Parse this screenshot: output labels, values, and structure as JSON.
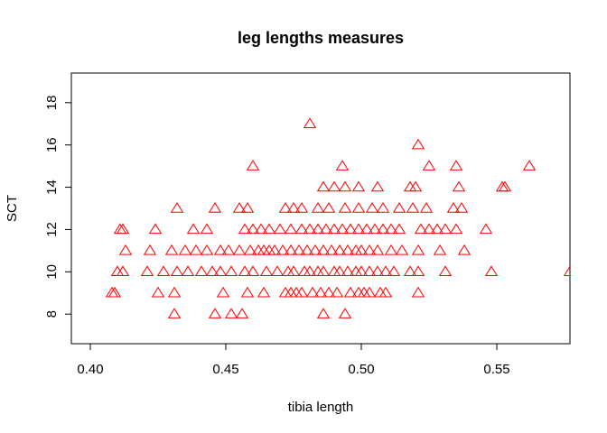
{
  "chart_data": {
    "type": "scatter",
    "title": "leg lengths measures",
    "xlabel": "tibia length",
    "ylabel": "SCT",
    "xlim": [
      0.393,
      0.577
    ],
    "ylim": [
      6.6,
      19.4
    ],
    "xticks": [
      0.4,
      0.45,
      0.5,
      0.55
    ],
    "xtick_labels": [
      "0.40",
      "0.45",
      "0.50",
      "0.55"
    ],
    "yticks": [
      8,
      10,
      12,
      14,
      16,
      18
    ],
    "ytick_labels": [
      "8",
      "10",
      "12",
      "14",
      "16",
      "18"
    ],
    "grid": false,
    "marker": "open-triangle",
    "marker_color": "#ff0000",
    "series": [
      {
        "points": [
          [
            0.408,
            9
          ],
          [
            0.409,
            9
          ],
          [
            0.431,
            9
          ],
          [
            0.425,
            9
          ],
          [
            0.449,
            9
          ],
          [
            0.458,
            9
          ],
          [
            0.464,
            9
          ],
          [
            0.472,
            9
          ],
          [
            0.474,
            9
          ],
          [
            0.476,
            9
          ],
          [
            0.478,
            9
          ],
          [
            0.482,
            9
          ],
          [
            0.485,
            9
          ],
          [
            0.488,
            9
          ],
          [
            0.491,
            9
          ],
          [
            0.496,
            9
          ],
          [
            0.499,
            9
          ],
          [
            0.501,
            9
          ],
          [
            0.503,
            9
          ],
          [
            0.507,
            9
          ],
          [
            0.509,
            9
          ],
          [
            0.521,
            9
          ],
          [
            0.431,
            8
          ],
          [
            0.446,
            8
          ],
          [
            0.452,
            8
          ],
          [
            0.456,
            8
          ],
          [
            0.486,
            8
          ],
          [
            0.494,
            8
          ],
          [
            0.41,
            10
          ],
          [
            0.412,
            10
          ],
          [
            0.421,
            10
          ],
          [
            0.427,
            10
          ],
          [
            0.432,
            10
          ],
          [
            0.436,
            10
          ],
          [
            0.441,
            10
          ],
          [
            0.445,
            10
          ],
          [
            0.448,
            10
          ],
          [
            0.452,
            10
          ],
          [
            0.457,
            10
          ],
          [
            0.46,
            10
          ],
          [
            0.465,
            10
          ],
          [
            0.469,
            10
          ],
          [
            0.473,
            10
          ],
          [
            0.475,
            10
          ],
          [
            0.479,
            10
          ],
          [
            0.481,
            10
          ],
          [
            0.484,
            10
          ],
          [
            0.486,
            10
          ],
          [
            0.49,
            10
          ],
          [
            0.492,
            10
          ],
          [
            0.495,
            10
          ],
          [
            0.498,
            10
          ],
          [
            0.5,
            10
          ],
          [
            0.503,
            10
          ],
          [
            0.506,
            10
          ],
          [
            0.509,
            10
          ],
          [
            0.512,
            10
          ],
          [
            0.518,
            10
          ],
          [
            0.521,
            10
          ],
          [
            0.531,
            10
          ],
          [
            0.548,
            10
          ],
          [
            0.577,
            10
          ],
          [
            0.413,
            11
          ],
          [
            0.422,
            11
          ],
          [
            0.43,
            11
          ],
          [
            0.435,
            11
          ],
          [
            0.439,
            11
          ],
          [
            0.443,
            11
          ],
          [
            0.448,
            11
          ],
          [
            0.451,
            11
          ],
          [
            0.455,
            11
          ],
          [
            0.459,
            11
          ],
          [
            0.462,
            11
          ],
          [
            0.464,
            11
          ],
          [
            0.466,
            11
          ],
          [
            0.468,
            11
          ],
          [
            0.471,
            11
          ],
          [
            0.474,
            11
          ],
          [
            0.477,
            11
          ],
          [
            0.48,
            11
          ],
          [
            0.483,
            11
          ],
          [
            0.486,
            11
          ],
          [
            0.489,
            11
          ],
          [
            0.492,
            11
          ],
          [
            0.495,
            11
          ],
          [
            0.498,
            11
          ],
          [
            0.5,
            11
          ],
          [
            0.503,
            11
          ],
          [
            0.506,
            11
          ],
          [
            0.511,
            11
          ],
          [
            0.515,
            11
          ],
          [
            0.521,
            11
          ],
          [
            0.529,
            11
          ],
          [
            0.538,
            11
          ],
          [
            0.411,
            12
          ],
          [
            0.412,
            12
          ],
          [
            0.424,
            12
          ],
          [
            0.438,
            12
          ],
          [
            0.443,
            12
          ],
          [
            0.457,
            12
          ],
          [
            0.46,
            12
          ],
          [
            0.463,
            12
          ],
          [
            0.466,
            12
          ],
          [
            0.47,
            12
          ],
          [
            0.474,
            12
          ],
          [
            0.478,
            12
          ],
          [
            0.481,
            12
          ],
          [
            0.484,
            12
          ],
          [
            0.487,
            12
          ],
          [
            0.49,
            12
          ],
          [
            0.493,
            12
          ],
          [
            0.496,
            12
          ],
          [
            0.499,
            12
          ],
          [
            0.502,
            12
          ],
          [
            0.505,
            12
          ],
          [
            0.508,
            12
          ],
          [
            0.511,
            12
          ],
          [
            0.514,
            12
          ],
          [
            0.522,
            12
          ],
          [
            0.525,
            12
          ],
          [
            0.528,
            12
          ],
          [
            0.531,
            12
          ],
          [
            0.535,
            12
          ],
          [
            0.546,
            12
          ],
          [
            0.432,
            13
          ],
          [
            0.446,
            13
          ],
          [
            0.455,
            13
          ],
          [
            0.458,
            13
          ],
          [
            0.472,
            13
          ],
          [
            0.475,
            13
          ],
          [
            0.478,
            13
          ],
          [
            0.484,
            13
          ],
          [
            0.488,
            13
          ],
          [
            0.494,
            13
          ],
          [
            0.499,
            13
          ],
          [
            0.504,
            13
          ],
          [
            0.508,
            13
          ],
          [
            0.514,
            13
          ],
          [
            0.519,
            13
          ],
          [
            0.524,
            13
          ],
          [
            0.534,
            13
          ],
          [
            0.537,
            13
          ],
          [
            0.486,
            14
          ],
          [
            0.49,
            14
          ],
          [
            0.494,
            14
          ],
          [
            0.499,
            14
          ],
          [
            0.506,
            14
          ],
          [
            0.518,
            14
          ],
          [
            0.52,
            14
          ],
          [
            0.536,
            14
          ],
          [
            0.552,
            14
          ],
          [
            0.553,
            14
          ],
          [
            0.46,
            15
          ],
          [
            0.493,
            15
          ],
          [
            0.525,
            15
          ],
          [
            0.535,
            15
          ],
          [
            0.562,
            15
          ],
          [
            0.521,
            16
          ],
          [
            0.481,
            17
          ]
        ]
      }
    ]
  }
}
